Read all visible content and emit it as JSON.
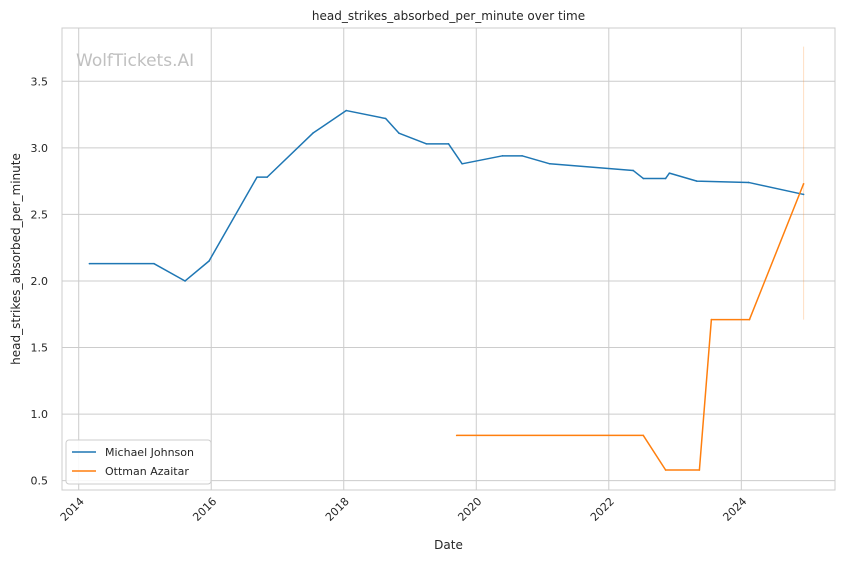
{
  "watermark": "WolfTickets.AI",
  "chart_data": {
    "type": "line",
    "title": "head_strikes_absorbed_per_minute over time",
    "xlabel": "Date",
    "ylabel": "head_strikes_absorbed_per_minute",
    "x_ticks": [
      "2014",
      "2016",
      "2018",
      "2020",
      "2022",
      "2024"
    ],
    "y_ticks": [
      "0.5",
      "1.0",
      "1.5",
      "2.0",
      "2.5",
      "3.0",
      "3.5"
    ],
    "xlim": [
      "2013-10-01",
      "2025-06-01"
    ],
    "ylim": [
      0.43,
      3.9
    ],
    "grid": true,
    "legend_position": "lower-left",
    "series": [
      {
        "name": "Michael Johnson",
        "color": "#1f77b4",
        "x": [
          "2014-03-01",
          "2015-02-20",
          "2015-08-10",
          "2015-12-20",
          "2016-09-10",
          "2016-11-05",
          "2017-07-15",
          "2018-01-15",
          "2018-08-20",
          "2018-11-01",
          "2019-04-01",
          "2019-08-01",
          "2019-10-15",
          "2020-05-25",
          "2020-09-10",
          "2021-02-10",
          "2022-05-15",
          "2022-07-10",
          "2022-11-10",
          "2022-12-01",
          "2023-05-01",
          "2024-02-10",
          "2024-12-10"
        ],
        "values": [
          2.13,
          2.13,
          2.0,
          2.15,
          2.78,
          2.78,
          3.11,
          3.28,
          3.22,
          3.11,
          3.03,
          3.03,
          2.88,
          2.94,
          2.94,
          2.88,
          2.83,
          2.77,
          2.77,
          2.81,
          2.75,
          2.74,
          2.65
        ]
      },
      {
        "name": "Ottman Azaitar",
        "color": "#ff7f0e",
        "x": [
          "2019-09-15",
          "2022-07-10",
          "2022-11-10",
          "2023-05-15",
          "2023-07-20",
          "2024-02-15",
          "2024-12-10"
        ],
        "values": [
          0.84,
          0.84,
          0.58,
          0.58,
          1.71,
          1.71,
          2.73
        ]
      }
    ],
    "error_band": {
      "x": "2024-12-10",
      "low": 1.71,
      "high": 3.76,
      "color": "#ff7f0e"
    }
  }
}
